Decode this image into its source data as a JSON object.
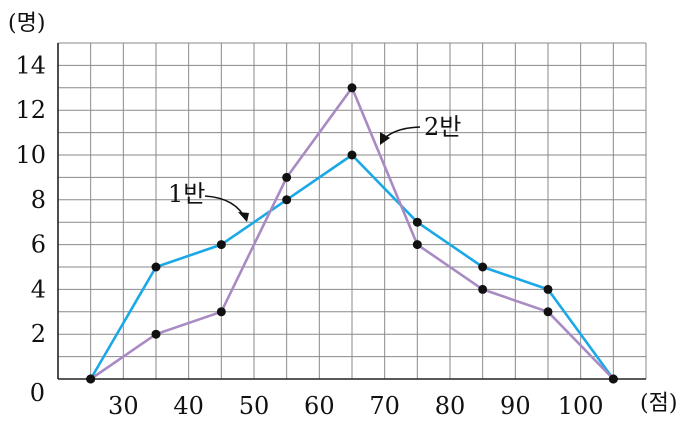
{
  "chart_data": {
    "type": "line",
    "y_unit": "(명)",
    "x_unit": "(점)",
    "x_ticks": [
      30,
      40,
      50,
      60,
      70,
      80,
      90,
      100
    ],
    "y_ticks": [
      0,
      2,
      4,
      6,
      8,
      10,
      12,
      14
    ],
    "xlim": [
      20,
      110
    ],
    "ylim": [
      0,
      15
    ],
    "grid": true,
    "series": [
      {
        "name": "1반",
        "color": "#1aa8e6",
        "x": [
          25,
          35,
          45,
          55,
          65,
          75,
          85,
          95,
          105
        ],
        "y": [
          0,
          5,
          6,
          8,
          10,
          7,
          5,
          4,
          0
        ]
      },
      {
        "name": "2반",
        "color": "#a98bc4",
        "x": [
          25,
          35,
          45,
          55,
          65,
          75,
          85,
          95,
          105
        ],
        "y": [
          0,
          2,
          3,
          9,
          13,
          6,
          4,
          3,
          0
        ]
      }
    ]
  }
}
